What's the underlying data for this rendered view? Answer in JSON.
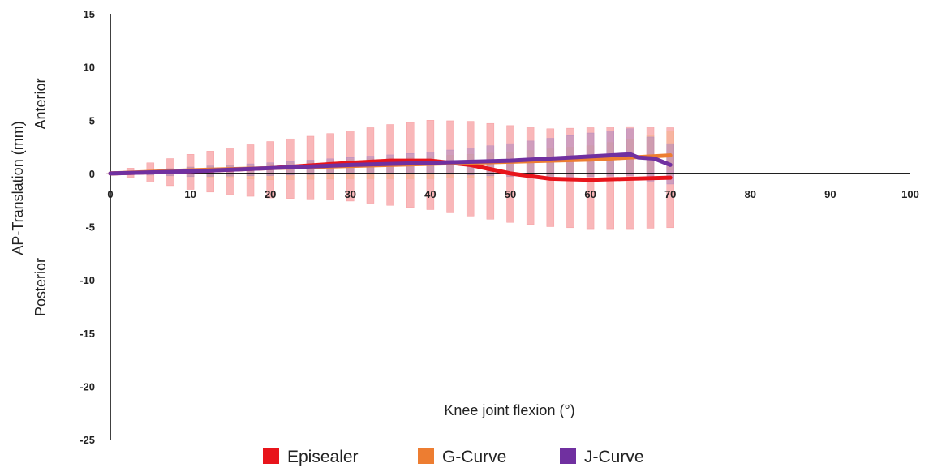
{
  "chart_data": {
    "type": "line",
    "xlabel": "Knee joint flexion (°)",
    "ylabel": "AP-Translation (mm)",
    "annotations": {
      "upper": "Anterior",
      "lower": "Posterior"
    },
    "xlim": [
      0,
      100
    ],
    "ylim": [
      -25,
      15
    ],
    "x_ticks": [
      "0",
      "10",
      "20",
      "30",
      "40",
      "50",
      "60",
      "70",
      "80",
      "90",
      "100"
    ],
    "y_ticks": [
      "15",
      "10",
      "5",
      "0",
      "-5",
      "-10",
      "-15",
      "-20",
      "-25"
    ],
    "legend_position": "bottom",
    "series": [
      {
        "name": "Episealer",
        "color": "#e8141b",
        "band_color": "#f47c80",
        "x": [
          0,
          5,
          10,
          15,
          20,
          25,
          30,
          35,
          40,
          45,
          50,
          55,
          60,
          65,
          70
        ],
        "mean": [
          0,
          0.1,
          0.2,
          0.35,
          0.5,
          0.75,
          1.0,
          1.2,
          1.2,
          0.8,
          0.0,
          -0.5,
          -0.6,
          -0.5,
          -0.4
        ],
        "upper": [
          0,
          1.0,
          1.8,
          2.4,
          3.0,
          3.5,
          4.0,
          4.6,
          5.0,
          4.9,
          4.5,
          4.2,
          4.3,
          4.4,
          4.3
        ],
        "lower": [
          0,
          -0.8,
          -1.5,
          -2.0,
          -2.3,
          -2.4,
          -2.6,
          -3.0,
          -3.4,
          -4.0,
          -4.6,
          -5.0,
          -5.2,
          -5.2,
          -5.1
        ]
      },
      {
        "name": "G-Curve",
        "color": "#ed7d31",
        "band_color": "#f5b183",
        "x": [
          0,
          10,
          20,
          30,
          40,
          50,
          60,
          65,
          70
        ],
        "mean": [
          0,
          0.3,
          0.5,
          0.7,
          0.9,
          1.1,
          1.3,
          1.5,
          1.7
        ],
        "upper": [
          0,
          0.6,
          0.9,
          1.3,
          1.6,
          2.0,
          2.6,
          3.2,
          4.0
        ],
        "lower": [
          0,
          -0.3,
          -0.6,
          -0.5,
          -0.5,
          -0.3,
          -0.2,
          0.0,
          0.3
        ]
      },
      {
        "name": "J-Curve",
        "color": "#7030a0",
        "band_color": "#9e7fc4",
        "x": [
          0,
          10,
          20,
          30,
          40,
          50,
          55,
          60,
          65,
          66,
          68,
          70
        ],
        "mean": [
          0,
          0.2,
          0.5,
          0.8,
          1.0,
          1.2,
          1.4,
          1.6,
          1.8,
          1.5,
          1.4,
          0.8
        ],
        "upper": [
          0,
          0.6,
          1.0,
          1.5,
          2.0,
          2.8,
          3.3,
          3.8,
          4.2,
          3.8,
          3.3,
          2.8
        ],
        "lower": [
          0,
          -0.3,
          -0.2,
          0.0,
          0.0,
          -0.3,
          -0.6,
          -0.3,
          -0.2,
          -0.5,
          -0.8,
          -1.0
        ]
      }
    ]
  }
}
